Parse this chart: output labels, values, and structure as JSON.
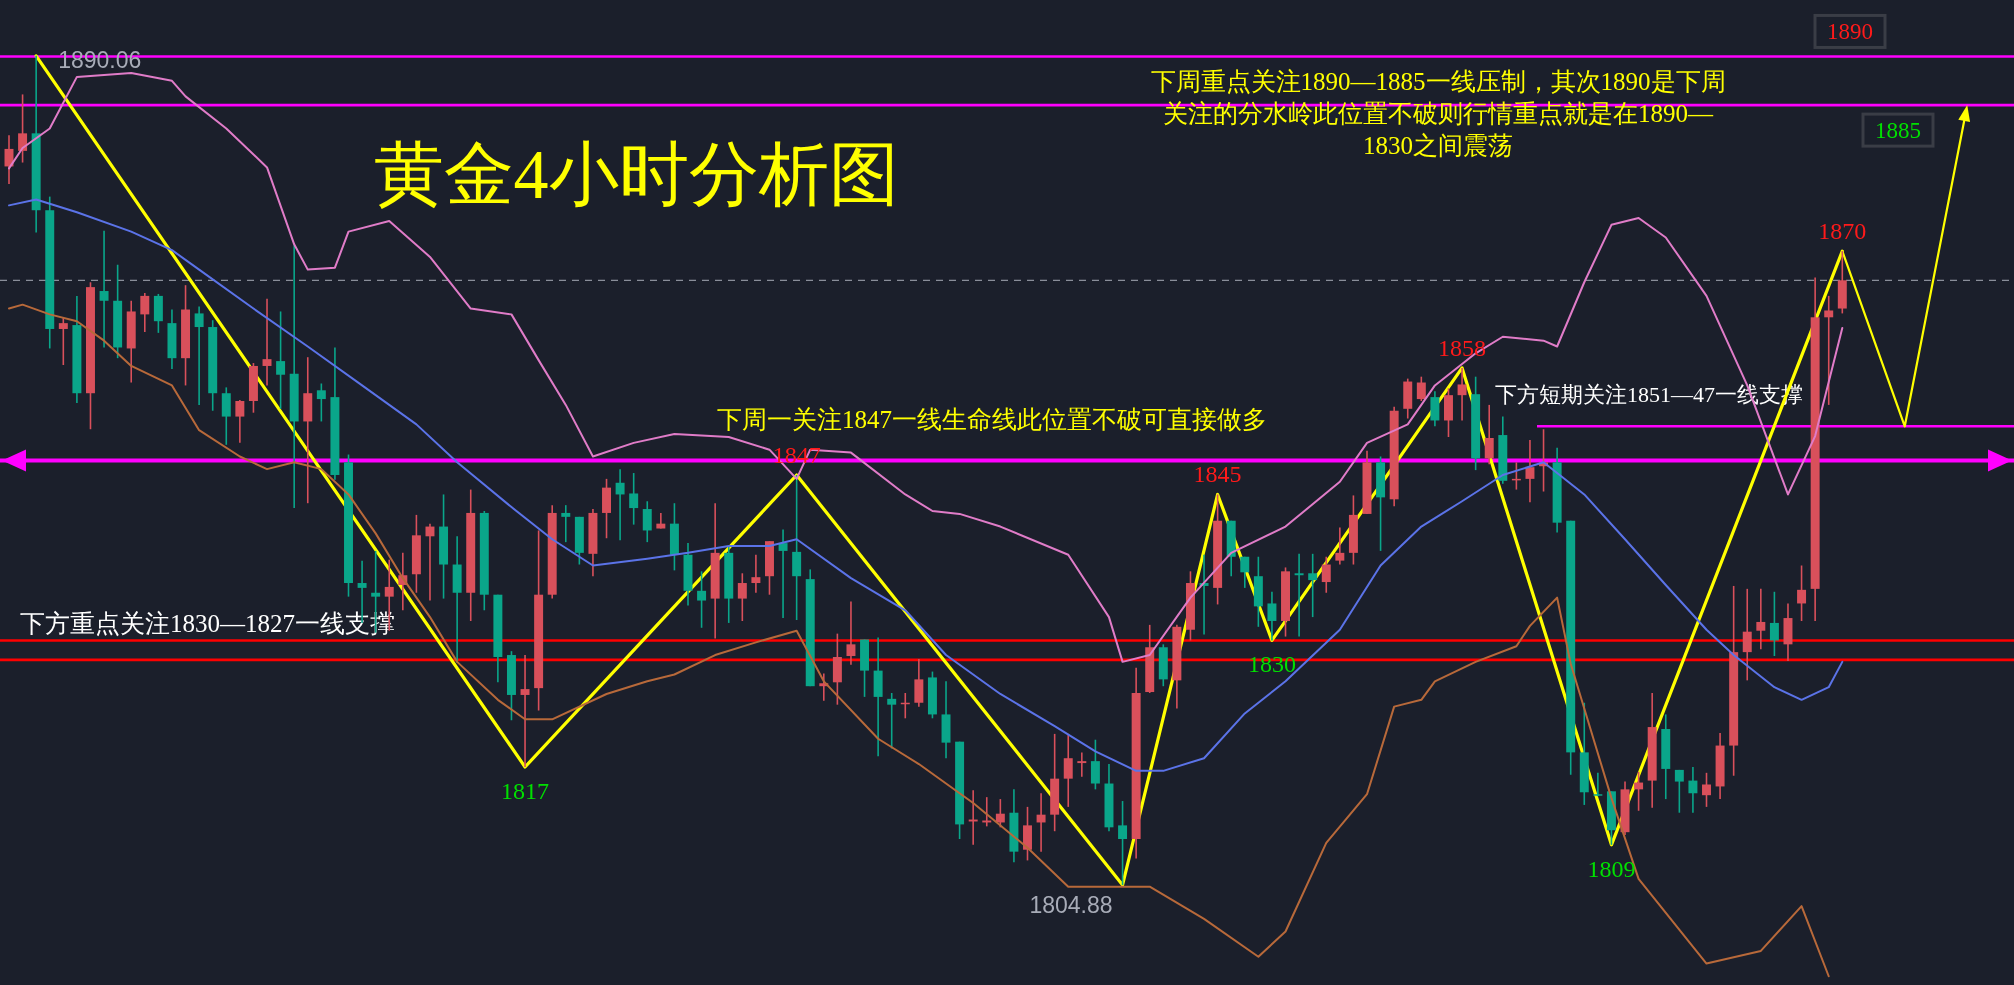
{
  "chart_data": {
    "type": "candlestick",
    "title": "黄金4小时分析图",
    "categories": [
      null,
      null,
      null,
      null,
      null,
      null,
      null,
      null,
      null,
      null,
      null,
      null,
      null,
      null,
      null,
      null,
      null,
      null,
      null,
      null,
      null,
      null,
      null,
      null,
      null,
      null,
      null,
      null,
      null,
      null,
      null,
      null,
      null,
      null,
      null,
      null,
      null,
      null,
      null,
      null,
      null,
      null,
      null,
      null,
      null,
      null,
      null,
      null,
      null,
      null,
      null,
      null,
      null,
      null,
      null,
      null,
      null,
      null,
      null,
      null,
      null,
      null,
      null,
      null,
      null,
      null,
      null,
      null,
      null,
      null,
      null,
      null,
      null,
      null,
      null,
      null,
      null,
      null,
      null,
      null,
      null,
      null,
      null,
      null,
      null,
      null,
      null,
      null,
      null,
      null,
      null,
      null,
      null,
      null,
      null,
      null,
      null,
      null,
      null,
      null,
      null,
      null,
      null,
      null,
      null,
      null,
      null,
      null,
      null,
      null,
      null,
      null,
      null,
      null,
      null,
      null,
      null,
      null,
      null,
      null,
      null,
      null,
      null,
      null,
      null,
      null,
      null,
      null,
      null,
      null,
      null,
      null,
      null,
      null,
      null,
      null
    ],
    "ylim": [
      1794.6,
      1895.8
    ],
    "ohlc": [
      [
        1878.7,
        1881.9,
        1876.9,
        1880.5
      ],
      [
        1880.3,
        1886.1,
        1879.1,
        1882.1
      ],
      [
        1882.1,
        1890.06,
        1871.9,
        1874.2
      ],
      [
        1874.2,
        1875.6,
        1860.0,
        1862.0
      ],
      [
        1862.0,
        1863.2,
        1858.3,
        1862.6
      ],
      [
        1862.4,
        1865.4,
        1854.4,
        1855.4
      ],
      [
        1855.4,
        1866.8,
        1851.7,
        1866.3
      ],
      [
        1865.9,
        1872.1,
        1860.1,
        1864.9
      ],
      [
        1864.9,
        1868.6,
        1859.0,
        1860.1
      ],
      [
        1860.0,
        1864.9,
        1856.5,
        1863.8
      ],
      [
        1863.5,
        1865.7,
        1861.7,
        1865.4
      ],
      [
        1865.4,
        1865.6,
        1861.6,
        1862.8
      ],
      [
        1862.6,
        1864.0,
        1857.9,
        1859.0
      ],
      [
        1859.0,
        1866.5,
        1856.2,
        1864.0
      ],
      [
        1863.6,
        1864.3,
        1854.2,
        1862.2
      ],
      [
        1862.2,
        1862.9,
        1853.6,
        1855.4
      ],
      [
        1855.4,
        1856.0,
        1850.1,
        1853.0
      ],
      [
        1853.0,
        1854.7,
        1850.3,
        1854.6
      ],
      [
        1854.6,
        1858.5,
        1853.4,
        1858.2
      ],
      [
        1858.2,
        1865.1,
        1856.2,
        1858.9
      ],
      [
        1858.7,
        1863.8,
        1853.8,
        1857.3
      ],
      [
        1857.4,
        1870.6,
        1843.6,
        1852.5
      ],
      [
        1852.5,
        1859.1,
        1844.1,
        1855.4
      ],
      [
        1855.7,
        1856.4,
        1852.5,
        1854.8
      ],
      [
        1855.0,
        1860.1,
        1846.5,
        1847.0
      ],
      [
        1848.3,
        1849.1,
        1834.5,
        1835.9
      ],
      [
        1835.9,
        1838.2,
        1831.8,
        1835.4
      ],
      [
        1834.9,
        1839.2,
        1830.8,
        1834.5
      ],
      [
        1834.5,
        1838.3,
        1831.0,
        1835.5
      ],
      [
        1835.7,
        1839.0,
        1833.1,
        1836.7
      ],
      [
        1836.8,
        1842.9,
        1834.9,
        1840.8
      ],
      [
        1840.7,
        1842.0,
        1834.1,
        1841.7
      ],
      [
        1841.7,
        1845.0,
        1834.3,
        1837.8
      ],
      [
        1837.8,
        1840.7,
        1827.7,
        1834.9
      ],
      [
        1834.9,
        1845.5,
        1832.0,
        1843.1
      ],
      [
        1843.1,
        1843.3,
        1833.1,
        1834.7
      ],
      [
        1834.7,
        1834.7,
        1825.7,
        1828.3
      ],
      [
        1828.5,
        1828.9,
        1821.8,
        1824.4
      ],
      [
        1824.4,
        1828.5,
        1817.0,
        1825.0
      ],
      [
        1825.1,
        1841.3,
        1822.8,
        1834.7
      ],
      [
        1834.7,
        1843.9,
        1834.3,
        1843.1
      ],
      [
        1843.1,
        1843.9,
        1840.1,
        1842.7
      ],
      [
        1842.7,
        1842.7,
        1837.8,
        1839.0
      ],
      [
        1838.9,
        1843.5,
        1836.6,
        1843.1
      ],
      [
        1843.1,
        1846.6,
        1840.5,
        1845.7
      ],
      [
        1846.2,
        1847.6,
        1840.3,
        1845.0
      ],
      [
        1845.1,
        1847.2,
        1841.9,
        1843.6
      ],
      [
        1843.5,
        1844.3,
        1840.1,
        1841.3
      ],
      [
        1841.5,
        1843.1,
        1841.5,
        1842.0
      ],
      [
        1842.0,
        1844.1,
        1837.2,
        1838.8
      ],
      [
        1838.8,
        1840.0,
        1833.6,
        1835.1
      ],
      [
        1835.1,
        1837.1,
        1831.3,
        1834.1
      ],
      [
        1834.3,
        1844.1,
        1830.2,
        1839.0
      ],
      [
        1839.0,
        1839.7,
        1831.8,
        1834.3
      ],
      [
        1834.3,
        1836.9,
        1832.0,
        1835.9
      ],
      [
        1835.9,
        1838.8,
        1834.9,
        1836.5
      ],
      [
        1836.6,
        1840.2,
        1834.7,
        1840.2
      ],
      [
        1840.0,
        1841.4,
        1832.3,
        1839.2
      ],
      [
        1839.1,
        1847.0,
        1832.1,
        1836.6
      ],
      [
        1836.3,
        1837.3,
        1825.3,
        1825.3
      ],
      [
        1825.3,
        1826.6,
        1823.8,
        1825.6
      ],
      [
        1825.7,
        1830.7,
        1823.4,
        1828.3
      ],
      [
        1828.4,
        1834.0,
        1827.5,
        1829.6
      ],
      [
        1830.1,
        1830.1,
        1824.2,
        1826.9
      ],
      [
        1826.9,
        1830.3,
        1818.1,
        1824.2
      ],
      [
        1824.0,
        1824.6,
        1818.9,
        1823.4
      ],
      [
        1823.5,
        1824.6,
        1822.0,
        1823.6
      ],
      [
        1823.6,
        1828.1,
        1823.2,
        1826.0
      ],
      [
        1826.2,
        1826.8,
        1822.0,
        1822.4
      ],
      [
        1822.4,
        1825.8,
        1817.9,
        1819.5
      ],
      [
        1819.6,
        1819.6,
        1809.6,
        1811.1
      ],
      [
        1811.4,
        1814.6,
        1809.0,
        1811.6
      ],
      [
        1811.3,
        1813.9,
        1810.9,
        1811.5
      ],
      [
        1811.3,
        1813.7,
        1810.8,
        1812.2
      ],
      [
        1812.3,
        1814.7,
        1807.2,
        1808.3
      ],
      [
        1808.5,
        1812.9,
        1807.4,
        1811.0
      ],
      [
        1811.3,
        1814.3,
        1808.3,
        1812.1
      ],
      [
        1812.1,
        1820.4,
        1810.4,
        1815.8
      ],
      [
        1815.8,
        1820.4,
        1812.9,
        1817.9
      ],
      [
        1817.4,
        1818.5,
        1816.0,
        1817.6
      ],
      [
        1817.6,
        1819.8,
        1814.7,
        1815.3
      ],
      [
        1815.3,
        1817.3,
        1810.4,
        1810.8
      ],
      [
        1811.0,
        1813.5,
        1804.88,
        1809.6
      ],
      [
        1809.6,
        1827.2,
        1807.6,
        1824.6
      ],
      [
        1824.7,
        1831.6,
        1824.6,
        1829.3
      ],
      [
        1829.3,
        1829.6,
        1825.3,
        1826.0
      ],
      [
        1825.9,
        1831.6,
        1823.0,
        1831.4
      ],
      [
        1831.1,
        1837.1,
        1830.0,
        1835.9
      ],
      [
        1835.9,
        1838.8,
        1830.6,
        1835.6
      ],
      [
        1835.4,
        1845.0,
        1833.7,
        1842.3
      ],
      [
        1842.3,
        1842.3,
        1836.6,
        1838.6
      ],
      [
        1838.6,
        1838.6,
        1835.4,
        1837.0
      ],
      [
        1836.6,
        1838.6,
        1831.4,
        1833.5
      ],
      [
        1833.8,
        1835.0,
        1830.0,
        1832.0
      ],
      [
        1832.0,
        1837.5,
        1830.4,
        1837.1
      ],
      [
        1836.9,
        1838.9,
        1830.4,
        1836.7
      ],
      [
        1836.9,
        1838.9,
        1832.4,
        1836.2
      ],
      [
        1836.0,
        1838.6,
        1834.9,
        1837.8
      ],
      [
        1838.2,
        1841.6,
        1837.8,
        1839.0
      ],
      [
        1839.0,
        1844.9,
        1837.8,
        1842.9
      ],
      [
        1843.0,
        1849.5,
        1843.0,
        1848.3
      ],
      [
        1848.3,
        1848.9,
        1839.2,
        1844.7
      ],
      [
        1844.5,
        1854.0,
        1843.8,
        1853.6
      ],
      [
        1853.8,
        1856.9,
        1852.8,
        1856.6
      ],
      [
        1854.8,
        1857.1,
        1854.6,
        1856.5
      ],
      [
        1855.0,
        1855.6,
        1852.0,
        1852.6
      ],
      [
        1852.6,
        1855.9,
        1850.9,
        1855.2
      ],
      [
        1855.2,
        1858.0,
        1852.6,
        1856.3
      ],
      [
        1855.3,
        1857.1,
        1847.5,
        1848.7
      ],
      [
        1848.7,
        1854.2,
        1848.1,
        1850.8
      ],
      [
        1851.1,
        1853.0,
        1846.1,
        1846.4
      ],
      [
        1846.5,
        1848.3,
        1845.5,
        1846.6
      ],
      [
        1846.6,
        1850.6,
        1844.2,
        1847.8
      ],
      [
        1847.9,
        1851.7,
        1845.3,
        1848.3
      ],
      [
        1848.3,
        1849.8,
        1841.1,
        1842.1
      ],
      [
        1842.3,
        1842.3,
        1816.2,
        1818.5
      ],
      [
        1818.5,
        1823.6,
        1813.1,
        1814.4
      ],
      [
        1814.2,
        1816.4,
        1814.0,
        1814.1
      ],
      [
        1814.5,
        1814.5,
        1809.0,
        1810.5
      ],
      [
        1810.3,
        1815.5,
        1810.0,
        1814.7
      ],
      [
        1814.7,
        1816.5,
        1812.5,
        1815.4
      ],
      [
        1815.6,
        1824.6,
        1812.8,
        1821.1
      ],
      [
        1820.9,
        1822.4,
        1813.7,
        1816.8
      ],
      [
        1816.7,
        1816.7,
        1812.3,
        1815.5
      ],
      [
        1815.6,
        1817.0,
        1812.3,
        1814.3
      ],
      [
        1814.1,
        1816.4,
        1812.9,
        1815.2
      ],
      [
        1815.0,
        1820.5,
        1813.7,
        1819.2
      ],
      [
        1819.2,
        1835.6,
        1816.1,
        1828.8
      ],
      [
        1828.8,
        1835.3,
        1825.9,
        1830.9
      ],
      [
        1831.0,
        1835.3,
        1829.1,
        1831.9
      ],
      [
        1831.8,
        1835.0,
        1828.4,
        1830.0
      ],
      [
        1829.6,
        1833.8,
        1827.9,
        1832.3
      ],
      [
        1833.8,
        1837.7,
        1832.0,
        1835.2
      ],
      [
        1835.3,
        1867.3,
        1832.0,
        1863.2
      ],
      [
        1863.2,
        1865.4,
        1854.2,
        1863.9
      ],
      [
        1864.1,
        1870.0,
        1863.6,
        1867.0
      ]
    ],
    "series": [
      {
        "type": "line",
        "color": "#e07cc8",
        "values": [
          1878.5,
          1880.6,
          null,
          1882.6,
          null,
          1887.9,
          null,
          null,
          null,
          1888.3,
          null,
          null,
          1887.5,
          1885.9,
          null,
          null,
          1882.6,
          null,
          null,
          1878.6,
          null,
          1870.7,
          1868.1,
          null,
          1868.3,
          1872.0,
          null,
          null,
          1873.1,
          null,
          null,
          1869.4,
          null,
          null,
          1864.1,
          null,
          null,
          1863.5,
          null,
          1858.8,
          null,
          1854.2,
          null,
          1848.9,
          null,
          null,
          1850.3,
          null,
          null,
          1851.2,
          null,
          null,
          null,
          1850.9,
          null,
          null,
          1849.6,
          null,
          1846.6,
          1849.6,
          null,
          null,
          1849.3,
          null,
          null,
          null,
          1845.0,
          null,
          1843.3,
          null,
          1843.0,
          null,
          null,
          1841.7,
          null,
          null,
          null,
          null,
          1838.8,
          null,
          null,
          1832.4,
          1827.8,
          null,
          1828.5,
          null,
          null,
          1834.4,
          null,
          null,
          1839.0,
          null,
          null,
          null,
          1841.7,
          null,
          null,
          null,
          1846.3,
          null,
          1850.3,
          null,
          null,
          1852.2,
          null,
          1856.2,
          null,
          null,
          1859.5,
          null,
          1861.2,
          null,
          null,
          1860.8,
          1860.2,
          null,
          1866.8,
          null,
          1872.7,
          null,
          1873.4,
          null,
          1871.4,
          null,
          null,
          1865.4,
          null,
          null,
          1856.2,
          null,
          null,
          1845.0,
          null,
          1851.0,
          null,
          1862.1
        ]
      },
      {
        "type": "line",
        "color": "#5b73e8",
        "values": [
          1874.7,
          null,
          1875.3,
          null,
          null,
          1874.0,
          null,
          null,
          null,
          1872.0,
          null,
          null,
          1870.1,
          null,
          1868.1,
          null,
          null,
          null,
          1864.1,
          null,
          null,
          null,
          1860.2,
          null,
          null,
          null,
          1856.2,
          null,
          null,
          null,
          1852.2,
          null,
          null,
          1848.3,
          null,
          null,
          null,
          1843.7,
          null,
          null,
          1840.4,
          null,
          null,
          1837.7,
          null,
          null,
          null,
          1838.4,
          null,
          null,
          1839.0,
          null,
          null,
          1839.7,
          null,
          null,
          1839.7,
          null,
          1840.4,
          null,
          null,
          null,
          1836.4,
          null,
          null,
          null,
          1833.1,
          null,
          null,
          1828.5,
          null,
          null,
          null,
          1824.5,
          null,
          null,
          null,
          1821.2,
          null,
          null,
          1818.6,
          null,
          null,
          1816.6,
          null,
          1816.6,
          null,
          null,
          1817.9,
          null,
          null,
          1822.5,
          null,
          null,
          1825.8,
          null,
          null,
          null,
          1831.1,
          null,
          null,
          1837.7,
          null,
          null,
          1841.7,
          null,
          null,
          1844.3,
          null,
          null,
          1847.0,
          null,
          null,
          1848.3,
          null,
          null,
          1845.0,
          null,
          null,
          1840.4,
          null,
          null,
          1835.7,
          null,
          null,
          1831.1,
          null,
          1828.5,
          null,
          null,
          1825.2,
          null,
          1823.9,
          null,
          1825.2,
          1827.8
        ]
      },
      {
        "type": "line",
        "color": "#b8693a",
        "values": [
          1864.1,
          1864.5,
          null,
          1863.5,
          null,
          1862.8,
          null,
          1860.8,
          null,
          1858.2,
          null,
          null,
          1856.2,
          null,
          1851.6,
          null,
          null,
          1848.9,
          null,
          1847.6,
          null,
          1848.3,
          null,
          1847.6,
          null,
          1845.0,
          null,
          1841.0,
          null,
          1836.4,
          null,
          1832.4,
          null,
          1827.8,
          null,
          null,
          1823.9,
          null,
          1821.9,
          null,
          1821.9,
          null,
          null,
          null,
          1824.5,
          null,
          null,
          1825.8,
          null,
          1826.5,
          null,
          null,
          1828.5,
          null,
          null,
          1829.8,
          null,
          null,
          1831.0,
          null,
          1825.8,
          null,
          null,
          null,
          1819.9,
          null,
          null,
          1817.3,
          null,
          null,
          null,
          1813.3,
          null,
          null,
          null,
          1808.7,
          null,
          null,
          1804.7,
          null,
          null,
          1804.7,
          null,
          null,
          1804.7,
          null,
          null,
          null,
          1801.4,
          null,
          null,
          null,
          1797.5,
          null,
          1800.1,
          null,
          null,
          1809.2,
          null,
          null,
          1814.2,
          null,
          1823.2,
          null,
          1823.9,
          1825.8,
          null,
          null,
          1827.8,
          null,
          null,
          1829.4,
          1831.5,
          null,
          1834.4,
          1827.6,
          null,
          null,
          1813.8,
          null,
          1805.5,
          null,
          null,
          null,
          null,
          1796.8,
          null,
          null,
          null,
          1798.1,
          null,
          null,
          1802.7,
          null,
          1795.5,
          null
        ]
      },
      {
        "type": "line",
        "color": "#ffff00",
        "values": [
          null,
          null,
          1890.06,
          null,
          null,
          null,
          null,
          null,
          null,
          null,
          null,
          null,
          null,
          null,
          null,
          null,
          null,
          null,
          null,
          null,
          null,
          null,
          null,
          null,
          null,
          null,
          null,
          null,
          null,
          null,
          null,
          null,
          null,
          null,
          null,
          null,
          null,
          null,
          1817,
          null,
          null,
          null,
          null,
          null,
          null,
          null,
          null,
          null,
          null,
          null,
          null,
          null,
          null,
          null,
          null,
          null,
          null,
          null,
          1847,
          null,
          null,
          null,
          null,
          null,
          null,
          null,
          null,
          null,
          null,
          null,
          null,
          null,
          null,
          null,
          null,
          null,
          null,
          null,
          null,
          null,
          null,
          null,
          1804.88,
          null,
          null,
          null,
          null,
          null,
          null,
          1845,
          null,
          null,
          null,
          1830,
          null,
          null,
          null,
          null,
          null,
          null,
          null,
          null,
          null,
          null,
          null,
          null,
          null,
          1858,
          null,
          null,
          null,
          null,
          null,
          null,
          null,
          null,
          null,
          null,
          1809,
          null,
          null,
          null,
          null,
          null,
          null,
          null,
          null,
          null,
          null,
          null,
          null,
          null,
          null,
          null,
          null,
          1870
        ]
      }
    ],
    "ref_lines": [
      {
        "axis": "y",
        "value": 1890,
        "label": "1890",
        "color": "#ff00ff"
      },
      {
        "axis": "y",
        "value": 1885,
        "label": "1885",
        "color": "#ff00ff"
      },
      {
        "axis": "y",
        "value": 1848.5,
        "label": "下周一关注1847一线生命线此位置不破可直接做多",
        "color": "#ff00ff"
      },
      {
        "axis": "y",
        "value": 1852,
        "label": "下方短期关注1851—47一线支撑",
        "color": "#ff00ff"
      },
      {
        "axis": "y",
        "value": 1830,
        "label": "下方重点关注1830—1827一线支撑",
        "color": "#ff0000"
      },
      {
        "axis": "y",
        "value": 1828,
        "color": "#ff0000"
      },
      {
        "axis": "y",
        "value": 1867,
        "color": "#8a8e9a",
        "line_style": "dashed"
      }
    ],
    "annotations": [
      {
        "text": "1890.06",
        "y": 1890.06
      },
      {
        "text": "1817",
        "y": 1817
      },
      {
        "text": "1847",
        "y": 1847
      },
      {
        "text": "1804.88",
        "y": 1804.88
      },
      {
        "text": "1845",
        "y": 1845
      },
      {
        "text": "1830",
        "y": 1830
      },
      {
        "text": "1858",
        "y": 1858
      },
      {
        "text": "1809",
        "y": 1809
      },
      {
        "text": "1870",
        "y": 1870
      },
      "下周重点关注1890—1885一线压制，其次1890是下周关注的分水岭此位置不破则行情重点就是在1890—1830之间震荡"
    ]
  }
}
